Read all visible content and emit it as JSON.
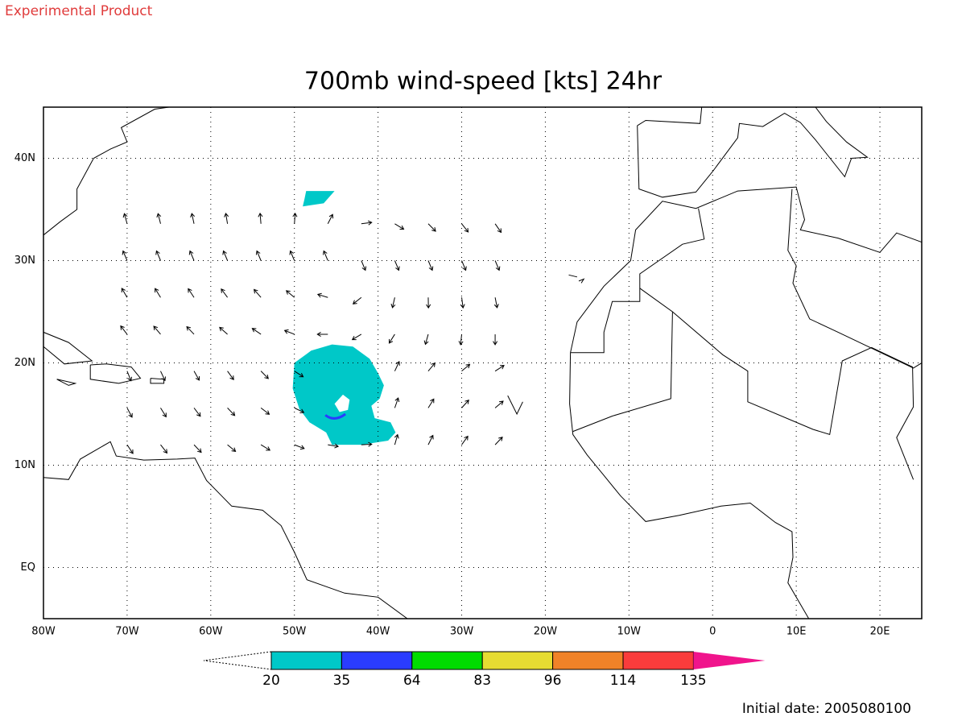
{
  "header": {
    "note": "Experimental Product",
    "title": "700mb wind-speed [kts] 24hr"
  },
  "map": {
    "lonlim": [
      -80,
      25
    ],
    "latlim": [
      -5,
      45
    ],
    "lon_ticks": [
      {
        "value": -80,
        "label": "80W"
      },
      {
        "value": -70,
        "label": "70W"
      },
      {
        "value": -60,
        "label": "60W"
      },
      {
        "value": -50,
        "label": "50W"
      },
      {
        "value": -40,
        "label": "40W"
      },
      {
        "value": -30,
        "label": "30W"
      },
      {
        "value": -20,
        "label": "20W"
      },
      {
        "value": -10,
        "label": "10W"
      },
      0,
      {
        "value": 10,
        "label": "10E"
      },
      {
        "value": 20,
        "label": "20E"
      }
    ],
    "lat_ticks": [
      {
        "value": 0,
        "label": "EQ"
      },
      {
        "value": 10,
        "label": "10N"
      },
      {
        "value": 20,
        "label": "20N"
      },
      {
        "value": 30,
        "label": "30N"
      },
      {
        "value": 40,
        "label": "40N"
      }
    ],
    "grid": true
  },
  "colorbar": {
    "levels": [
      20,
      35,
      64,
      83,
      96,
      114,
      135
    ],
    "colors": [
      "#00c8c8",
      "#2a3cff",
      "#00dc00",
      "#e6dc32",
      "#f08228",
      "#fa3c3c",
      "#f0148c"
    ]
  },
  "footer": {
    "initial_date": "Initial date: 2005080100"
  }
}
